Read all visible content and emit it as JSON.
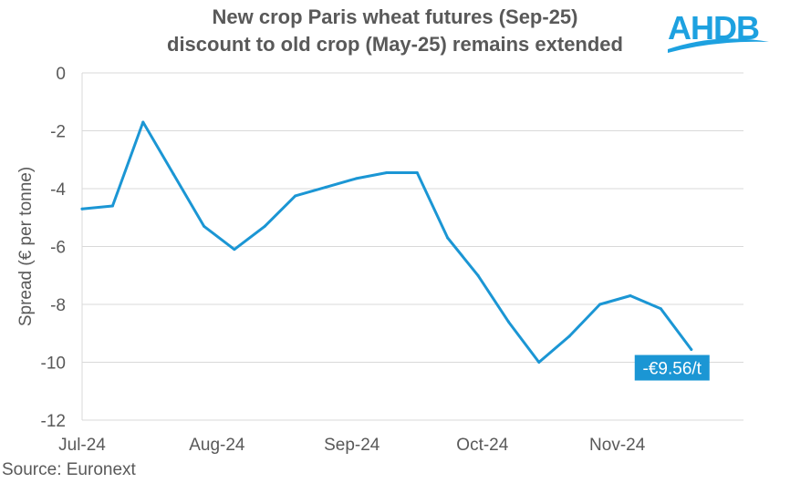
{
  "title": {
    "line1": "New crop Paris wheat futures (Sep-25)",
    "line2": "discount to old crop (May-25) remains extended"
  },
  "logo": {
    "text": "AHDB"
  },
  "source": "Source: Euronext",
  "colors": {
    "line": "#1b96d4",
    "grid": "#d9d9d9",
    "text": "#595959",
    "logo": "#1da1e0"
  },
  "chart_data": {
    "type": "line",
    "title": "New crop Paris wheat futures (Sep-25) discount to old crop (May-25) remains extended",
    "xlabel": "",
    "ylabel": "Spread (€ per tonne)",
    "ylim": [
      -12,
      0
    ],
    "yticks": [
      0,
      -2,
      -4,
      -6,
      -8,
      -10,
      -12
    ],
    "grid": true,
    "x_ticks": [
      {
        "label": "Jul-24",
        "date": "2024-07-01"
      },
      {
        "label": "Aug-24",
        "date": "2024-08-01"
      },
      {
        "label": "Sep-24",
        "date": "2024-09-01"
      },
      {
        "label": "Oct-24",
        "date": "2024-10-01"
      },
      {
        "label": "Nov-24",
        "date": "2024-11-01"
      }
    ],
    "x_range": [
      "2024-07-01",
      "2024-11-30"
    ],
    "series": [
      {
        "points": [
          {
            "x": "2024-07-01",
            "y": -4.7
          },
          {
            "x": "2024-07-08",
            "y": -4.6
          },
          {
            "x": "2024-07-15",
            "y": -1.7
          },
          {
            "x": "2024-07-22",
            "y": -3.5
          },
          {
            "x": "2024-07-29",
            "y": -5.3
          },
          {
            "x": "2024-08-05",
            "y": -6.1
          },
          {
            "x": "2024-08-12",
            "y": -5.3
          },
          {
            "x": "2024-08-19",
            "y": -4.25
          },
          {
            "x": "2024-08-26",
            "y": -3.95
          },
          {
            "x": "2024-09-02",
            "y": -3.65
          },
          {
            "x": "2024-09-09",
            "y": -3.45
          },
          {
            "x": "2024-09-16",
            "y": -3.45
          },
          {
            "x": "2024-09-23",
            "y": -5.7
          },
          {
            "x": "2024-09-30",
            "y": -7.0
          },
          {
            "x": "2024-10-07",
            "y": -8.6
          },
          {
            "x": "2024-10-14",
            "y": -10.0
          },
          {
            "x": "2024-10-21",
            "y": -9.1
          },
          {
            "x": "2024-10-28",
            "y": -8.0
          },
          {
            "x": "2024-11-04",
            "y": -7.7
          },
          {
            "x": "2024-11-11",
            "y": -8.15
          },
          {
            "x": "2024-11-18",
            "y": -9.56
          }
        ]
      }
    ],
    "annotations": [
      {
        "text": "-€9.56/t",
        "x": "2024-11-18",
        "y": -9.56
      }
    ]
  }
}
